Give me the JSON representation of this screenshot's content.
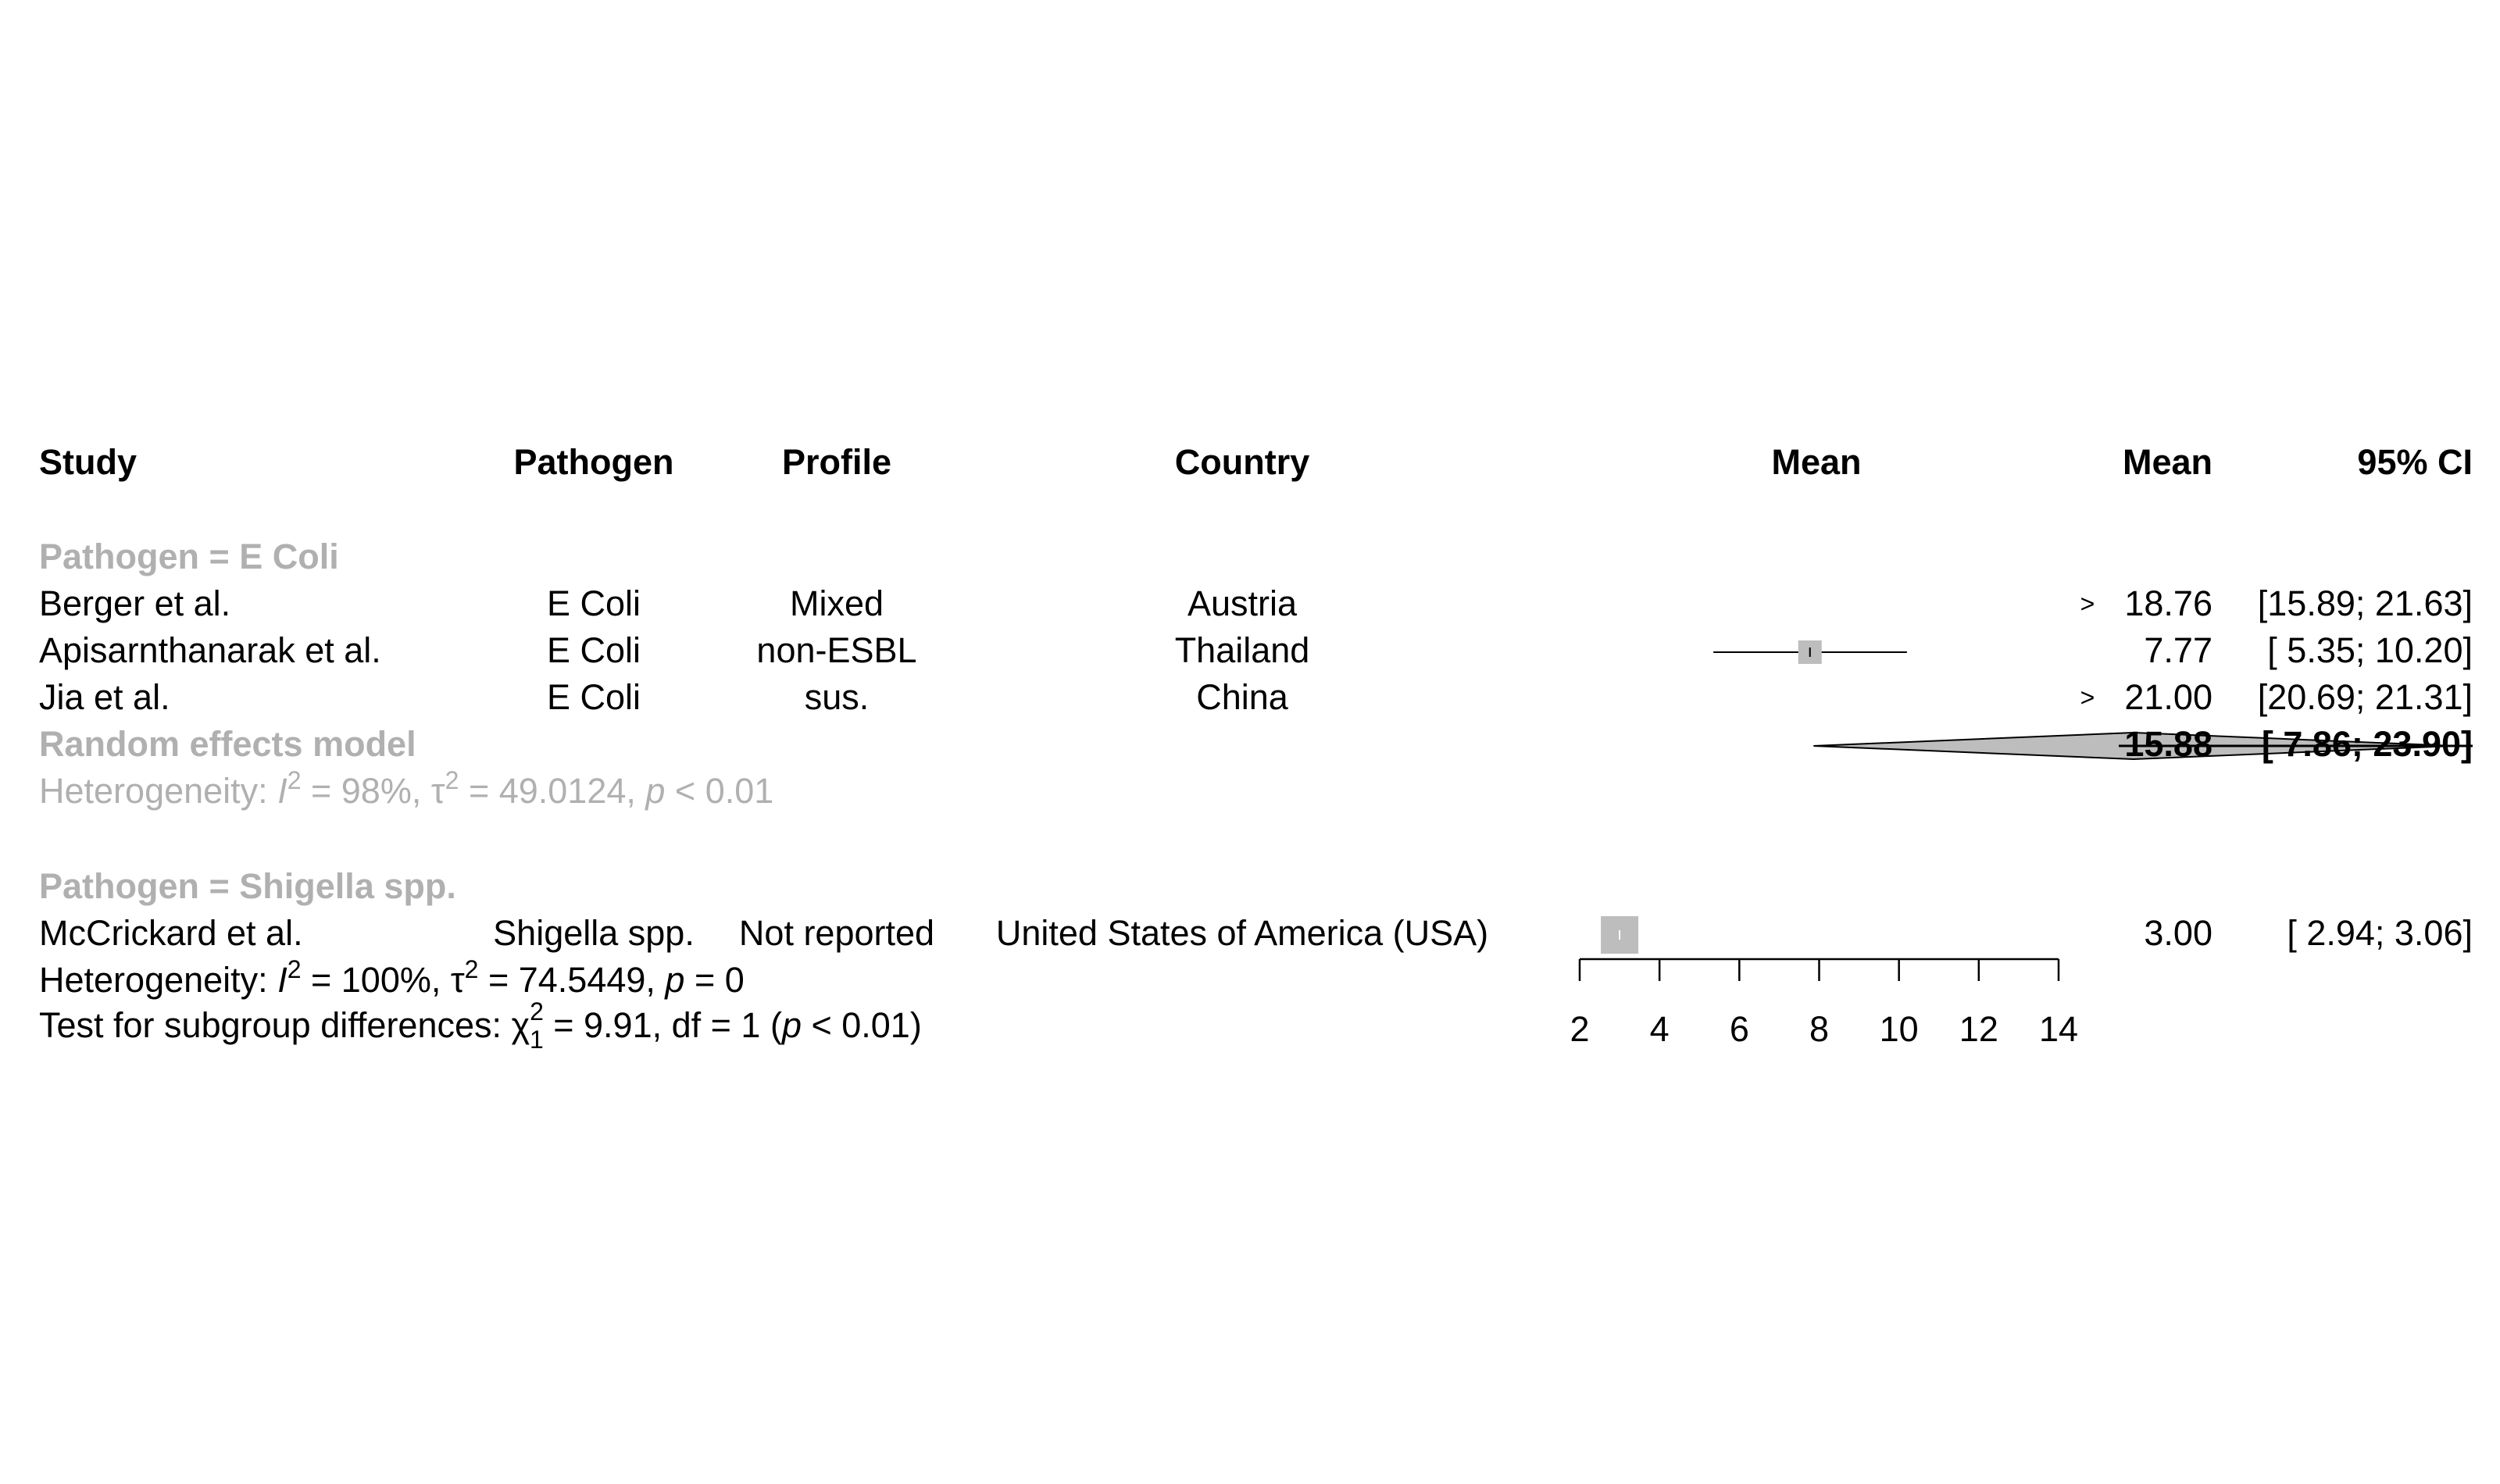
{
  "chart_data": {
    "type": "forest",
    "headers": {
      "study": "Study",
      "pathogen": "Pathogen",
      "profile": "Profile",
      "country": "Country",
      "plot": "Mean",
      "mean": "Mean",
      "ci": "95% CI"
    },
    "xaxis": {
      "ticks": [
        2,
        4,
        6,
        8,
        10,
        12,
        14
      ],
      "xlim": [
        2,
        14
      ]
    },
    "groups": [
      {
        "label": "Pathogen = E Coli",
        "studies": [
          {
            "study": "Berger et al.",
            "pathogen": "E Coli",
            "profile": "Mixed",
            "country": "Austria",
            "mean": 18.76,
            "lower": 15.89,
            "upper": 21.63,
            "mean_text": "18.76",
            "ci_text": "[15.89; 21.63]",
            "arrow": ">"
          },
          {
            "study": "Apisarnthanarak et al.",
            "pathogen": "E Coli",
            "profile": "non-ESBL",
            "country": "Thailand",
            "mean": 7.77,
            "lower": 5.35,
            "upper": 10.2,
            "mean_text": "7.77",
            "ci_text": "[ 5.35; 10.20]",
            "arrow": ""
          },
          {
            "study": "Jia et al.",
            "pathogen": "E Coli",
            "profile": "sus.",
            "country": "China",
            "mean": 21.0,
            "lower": 20.69,
            "upper": 21.31,
            "mean_text": "21.00",
            "ci_text": "[20.69; 21.31]",
            "arrow": ">"
          }
        ],
        "summary": {
          "label": "Random effects model",
          "mean": 15.88,
          "lower": 7.86,
          "upper": 23.9,
          "mean_text": "15.88",
          "ci_text": "[ 7.86; 23.90]"
        },
        "heterogeneity": {
          "prefix": "Heterogeneity: ",
          "I": "I",
          "sup2": "2",
          "i2_rest": " = 98%, ",
          "tau": "τ",
          "tau_rest": " = 49.0124, ",
          "p": "p",
          "p_rest": " < 0.01"
        }
      },
      {
        "label": "Pathogen = Shigella spp.",
        "studies": [
          {
            "study": "McCrickard et al.",
            "pathogen": "Shigella spp.",
            "profile": "Not reported",
            "country": "United States of America (USA)",
            "mean": 3.0,
            "lower": 2.94,
            "upper": 3.06,
            "mean_text": "3.00",
            "ci_text": "[ 2.94;  3.06]",
            "arrow": ""
          }
        ],
        "heterogeneity": {
          "prefix": "Heterogeneity: ",
          "I": "I",
          "sup2": "2",
          "i2_rest": " = 100%, ",
          "tau": "τ",
          "tau_rest": " = 74.5449, ",
          "p": "p",
          "p_rest": " = 0"
        }
      }
    ],
    "subgroup_test": {
      "prefix": "Test for subgroup differences: ",
      "chi": "χ",
      "sup": "2",
      "sub": "1",
      "rest1": " = 9.91, df = 1 (",
      "p": "p",
      "rest2": " < 0.01)"
    },
    "colors": {
      "text": "#000000",
      "group": "#b0b0b0",
      "box": "#bdbdbd",
      "diamond": "#bdbdbd",
      "line": "#000000"
    }
  }
}
